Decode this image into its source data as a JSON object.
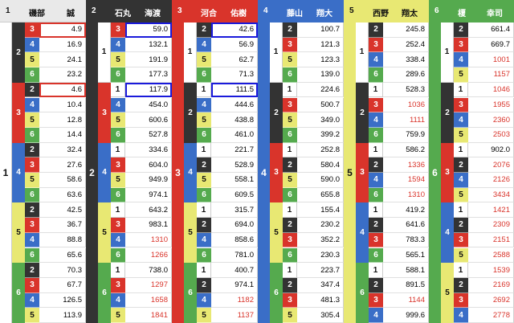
{
  "colors": {
    "c1": "#ffffff",
    "c2": "#333333",
    "c3": "#d9342b",
    "c4": "#3a6ec7",
    "c5": "#e8e873",
    "c6": "#55aa4e",
    "red_text": "#d9342b",
    "highlight_red": "#d9342b",
    "highlight_blue": "#1a1adb"
  },
  "headers": [
    {
      "num": "1",
      "family": "磯部",
      "given": "誠"
    },
    {
      "num": "2",
      "family": "石丸",
      "given": "海渡"
    },
    {
      "num": "3",
      "family": "河合",
      "given": "佑樹"
    },
    {
      "num": "4",
      "family": "藤山",
      "given": "翔大"
    },
    {
      "num": "5",
      "family": "西野",
      "given": "翔太"
    },
    {
      "num": "6",
      "family": "榎",
      "given": "幸司"
    }
  ],
  "columns": [
    {
      "first": "1",
      "blocks": [
        {
          "second": "2",
          "rows": [
            [
              "3",
              "4.9"
            ],
            [
              "4",
              "16.9"
            ],
            [
              "5",
              "24.1"
            ],
            [
              "6",
              "23.2"
            ]
          ]
        },
        {
          "second": "3",
          "rows": [
            [
              "2",
              "4.6"
            ],
            [
              "4",
              "10.4"
            ],
            [
              "5",
              "12.8"
            ],
            [
              "6",
              "14.4"
            ]
          ]
        },
        {
          "second": "4",
          "rows": [
            [
              "2",
              "32.4"
            ],
            [
              "3",
              "27.6"
            ],
            [
              "5",
              "58.6"
            ],
            [
              "6",
              "63.6"
            ]
          ]
        },
        {
          "second": "5",
          "rows": [
            [
              "2",
              "42.5"
            ],
            [
              "3",
              "36.7"
            ],
            [
              "4",
              "88.8"
            ],
            [
              "6",
              "65.6"
            ]
          ]
        },
        {
          "second": "6",
          "rows": [
            [
              "2",
              "70.3"
            ],
            [
              "3",
              "67.7"
            ],
            [
              "4",
              "126.5"
            ],
            [
              "5",
              "113.9"
            ]
          ]
        }
      ]
    },
    {
      "first": "2",
      "blocks": [
        {
          "second": "1",
          "rows": [
            [
              "3",
              "59.0"
            ],
            [
              "4",
              "132.1"
            ],
            [
              "5",
              "191.9"
            ],
            [
              "6",
              "177.3"
            ]
          ]
        },
        {
          "second": "3",
          "rows": [
            [
              "1",
              "117.9"
            ],
            [
              "4",
              "454.0"
            ],
            [
              "5",
              "600.6"
            ],
            [
              "6",
              "527.8"
            ]
          ]
        },
        {
          "second": "4",
          "rows": [
            [
              "1",
              "334.6"
            ],
            [
              "3",
              "604.0"
            ],
            [
              "5",
              "949.9"
            ],
            [
              "6",
              "974.1"
            ]
          ]
        },
        {
          "second": "5",
          "rows": [
            [
              "1",
              "643.2"
            ],
            [
              "3",
              "983.1"
            ],
            [
              "4",
              "1310"
            ],
            [
              "6",
              "1266"
            ]
          ]
        },
        {
          "second": "6",
          "rows": [
            [
              "1",
              "738.0"
            ],
            [
              "3",
              "1297"
            ],
            [
              "4",
              "1658"
            ],
            [
              "5",
              "1841"
            ]
          ]
        }
      ]
    },
    {
      "first": "3",
      "blocks": [
        {
          "second": "1",
          "rows": [
            [
              "2",
              "42.6"
            ],
            [
              "4",
              "56.9"
            ],
            [
              "5",
              "62.7"
            ],
            [
              "6",
              "71.3"
            ]
          ]
        },
        {
          "second": "2",
          "rows": [
            [
              "1",
              "111.5"
            ],
            [
              "4",
              "444.6"
            ],
            [
              "5",
              "438.8"
            ],
            [
              "6",
              "461.0"
            ]
          ]
        },
        {
          "second": "4",
          "rows": [
            [
              "1",
              "221.7"
            ],
            [
              "2",
              "528.9"
            ],
            [
              "5",
              "558.1"
            ],
            [
              "6",
              "609.5"
            ]
          ]
        },
        {
          "second": "5",
          "rows": [
            [
              "1",
              "315.7"
            ],
            [
              "2",
              "694.0"
            ],
            [
              "4",
              "858.6"
            ],
            [
              "6",
              "781.0"
            ]
          ]
        },
        {
          "second": "6",
          "rows": [
            [
              "1",
              "400.7"
            ],
            [
              "2",
              "974.1"
            ],
            [
              "4",
              "1182"
            ],
            [
              "5",
              "1137"
            ]
          ]
        }
      ]
    },
    {
      "first": "4",
      "blocks": [
        {
          "second": "1",
          "rows": [
            [
              "2",
              "100.7"
            ],
            [
              "3",
              "121.3"
            ],
            [
              "5",
              "123.3"
            ],
            [
              "6",
              "139.0"
            ]
          ]
        },
        {
          "second": "2",
          "rows": [
            [
              "1",
              "224.6"
            ],
            [
              "3",
              "500.7"
            ],
            [
              "5",
              "349.0"
            ],
            [
              "6",
              "399.2"
            ]
          ]
        },
        {
          "second": "3",
          "rows": [
            [
              "1",
              "252.8"
            ],
            [
              "2",
              "580.4"
            ],
            [
              "5",
              "590.0"
            ],
            [
              "6",
              "655.8"
            ]
          ]
        },
        {
          "second": "5",
          "rows": [
            [
              "1",
              "155.4"
            ],
            [
              "2",
              "230.2"
            ],
            [
              "3",
              "352.2"
            ],
            [
              "6",
              "230.3"
            ]
          ]
        },
        {
          "second": "6",
          "rows": [
            [
              "1",
              "223.7"
            ],
            [
              "2",
              "347.4"
            ],
            [
              "3",
              "481.3"
            ],
            [
              "5",
              "305.4"
            ]
          ]
        }
      ]
    },
    {
      "first": "5",
      "blocks": [
        {
          "second": "1",
          "rows": [
            [
              "2",
              "245.8"
            ],
            [
              "3",
              "252.4"
            ],
            [
              "4",
              "338.4"
            ],
            [
              "6",
              "289.6"
            ]
          ]
        },
        {
          "second": "2",
          "rows": [
            [
              "1",
              "528.3"
            ],
            [
              "3",
              "1036"
            ],
            [
              "4",
              "1111"
            ],
            [
              "6",
              "759.9"
            ]
          ]
        },
        {
          "second": "3",
          "rows": [
            [
              "1",
              "586.2"
            ],
            [
              "2",
              "1336"
            ],
            [
              "4",
              "1594"
            ],
            [
              "6",
              "1310"
            ]
          ]
        },
        {
          "second": "4",
          "rows": [
            [
              "1",
              "419.2"
            ],
            [
              "2",
              "641.6"
            ],
            [
              "3",
              "783.3"
            ],
            [
              "6",
              "565.1"
            ]
          ]
        },
        {
          "second": "6",
          "rows": [
            [
              "1",
              "588.1"
            ],
            [
              "2",
              "891.5"
            ],
            [
              "3",
              "1144"
            ],
            [
              "4",
              "999.6"
            ]
          ]
        }
      ]
    },
    {
      "first": "6",
      "blocks": [
        {
          "second": "1",
          "rows": [
            [
              "2",
              "661.4"
            ],
            [
              "3",
              "669.7"
            ],
            [
              "4",
              "1001"
            ],
            [
              "5",
              "1157"
            ]
          ]
        },
        {
          "second": "2",
          "rows": [
            [
              "1",
              "1046"
            ],
            [
              "3",
              "1955"
            ],
            [
              "4",
              "2360"
            ],
            [
              "5",
              "2503"
            ]
          ]
        },
        {
          "second": "3",
          "rows": [
            [
              "1",
              "902.0"
            ],
            [
              "2",
              "2076"
            ],
            [
              "4",
              "2126"
            ],
            [
              "5",
              "3434"
            ]
          ]
        },
        {
          "second": "4",
          "rows": [
            [
              "1",
              "1421"
            ],
            [
              "2",
              "2309"
            ],
            [
              "3",
              "2151"
            ],
            [
              "5",
              "2588"
            ]
          ]
        },
        {
          "second": "5",
          "rows": [
            [
              "1",
              "1539"
            ],
            [
              "2",
              "2169"
            ],
            [
              "3",
              "2692"
            ],
            [
              "4",
              "2778"
            ]
          ]
        }
      ]
    }
  ]
}
